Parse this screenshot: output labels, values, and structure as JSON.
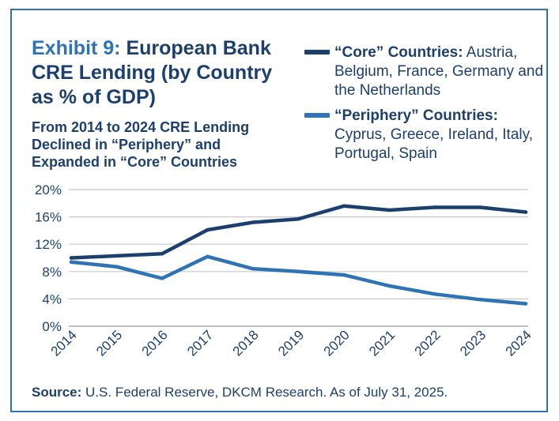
{
  "chart_data": {
    "type": "line",
    "title_prefix": "Exhibit 9:",
    "title": "European Bank CRE Lending (by Country as % of GDP)",
    "subtitle": "From 2014 to 2024 CRE Lending Declined in “Periphery” and Expanded in “Core” Countries",
    "x": [
      "2014",
      "2015",
      "2016",
      "2017",
      "2018",
      "2019",
      "2020",
      "2021",
      "2022",
      "2023",
      "2024"
    ],
    "ylim": [
      0,
      20
    ],
    "yticks": [
      "0%",
      "4%",
      "8%",
      "12%",
      "16%",
      "20%"
    ],
    "ytick_values": [
      0,
      4,
      8,
      12,
      16,
      20
    ],
    "grid": true,
    "legend_position": "top-right",
    "series": [
      {
        "name_bold": "“Core” Countries:",
        "name_rest": " Austria, Belgium, France, Germany and the Netherlands",
        "color": "#1c3f6e",
        "values": [
          10.0,
          10.3,
          10.6,
          14.1,
          15.2,
          15.7,
          17.6,
          17.0,
          17.4,
          17.4,
          16.7
        ]
      },
      {
        "name_bold": "“Periphery” Countries:",
        "name_rest": " Cyprus, Greece, Ireland, Italy, Portugal, Spain",
        "color": "#2f73b5",
        "values": [
          9.4,
          8.7,
          7.0,
          10.2,
          8.4,
          8.0,
          7.5,
          5.9,
          4.7,
          3.9,
          3.3
        ]
      }
    ]
  },
  "source": {
    "label": "Source:",
    "text": " U.S. Federal Reserve, DKCM Research. As of July 31, 2025."
  },
  "colors": {
    "border": "#2f73b5",
    "text": "#1c3f6e",
    "grid": "#c8c8c8"
  }
}
